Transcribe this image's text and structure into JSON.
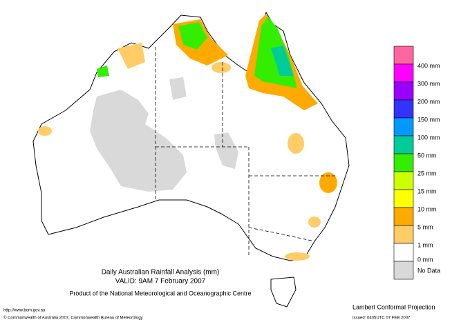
{
  "map": {
    "title": "Daily Australian Rainfall Analysis (mm)",
    "valid": "VALID: 9AM  7 February 2007",
    "product": "Product of the National Meteorological and Oceanographic Centre",
    "url": "http://www.bom.gov.au",
    "copyright": "© Commonwealth of Australia 2007, Commonwealth Bureau of Meteorology",
    "projection": "Lambert Conformal Projection",
    "issued": "Issued: 0405UTC 07 FEB 2007"
  },
  "legend": {
    "colors": [
      "#ff66a0",
      "#ff00ff",
      "#9900ff",
      "#3333ff",
      "#0099ff",
      "#00cc99",
      "#33ee00",
      "#ccff00",
      "#ffff00",
      "#ffaa00",
      "#ffcc66",
      "#ffffff",
      "#d9d9d9"
    ],
    "labels": [
      "400 mm",
      "300 mm",
      "200 mm",
      "150 mm",
      "100 mm",
      "50 mm",
      "25 mm",
      "15 mm",
      "10 mm",
      "5 mm",
      "1 mm",
      "0 mm",
      "No Data"
    ]
  }
}
